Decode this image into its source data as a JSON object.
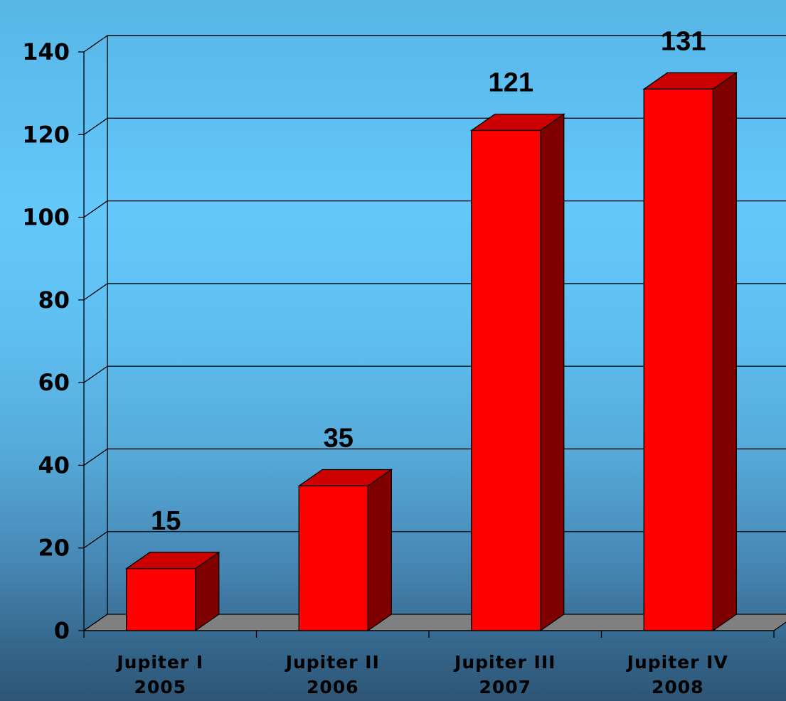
{
  "chart_data": {
    "type": "bar",
    "categories": [
      [
        "Jupiter I",
        "2005"
      ],
      [
        "Jupiter II",
        "2006"
      ],
      [
        "Jupiter III",
        "2007"
      ],
      [
        "Jupiter IV",
        "2008"
      ]
    ],
    "values": [
      15,
      35,
      121,
      131
    ],
    "data_labels": [
      "15",
      "35",
      "121",
      "131"
    ],
    "y_ticks": [
      "0",
      "20",
      "40",
      "60",
      "80",
      "100",
      "120",
      "140"
    ],
    "ylim": [
      0,
      140
    ],
    "grid": true,
    "three_d": true,
    "colors": {
      "bar_front": "#ff0000",
      "bar_top": "#cc0000",
      "bar_side": "#800000",
      "floor": "#808080",
      "outline": "#000000"
    }
  }
}
